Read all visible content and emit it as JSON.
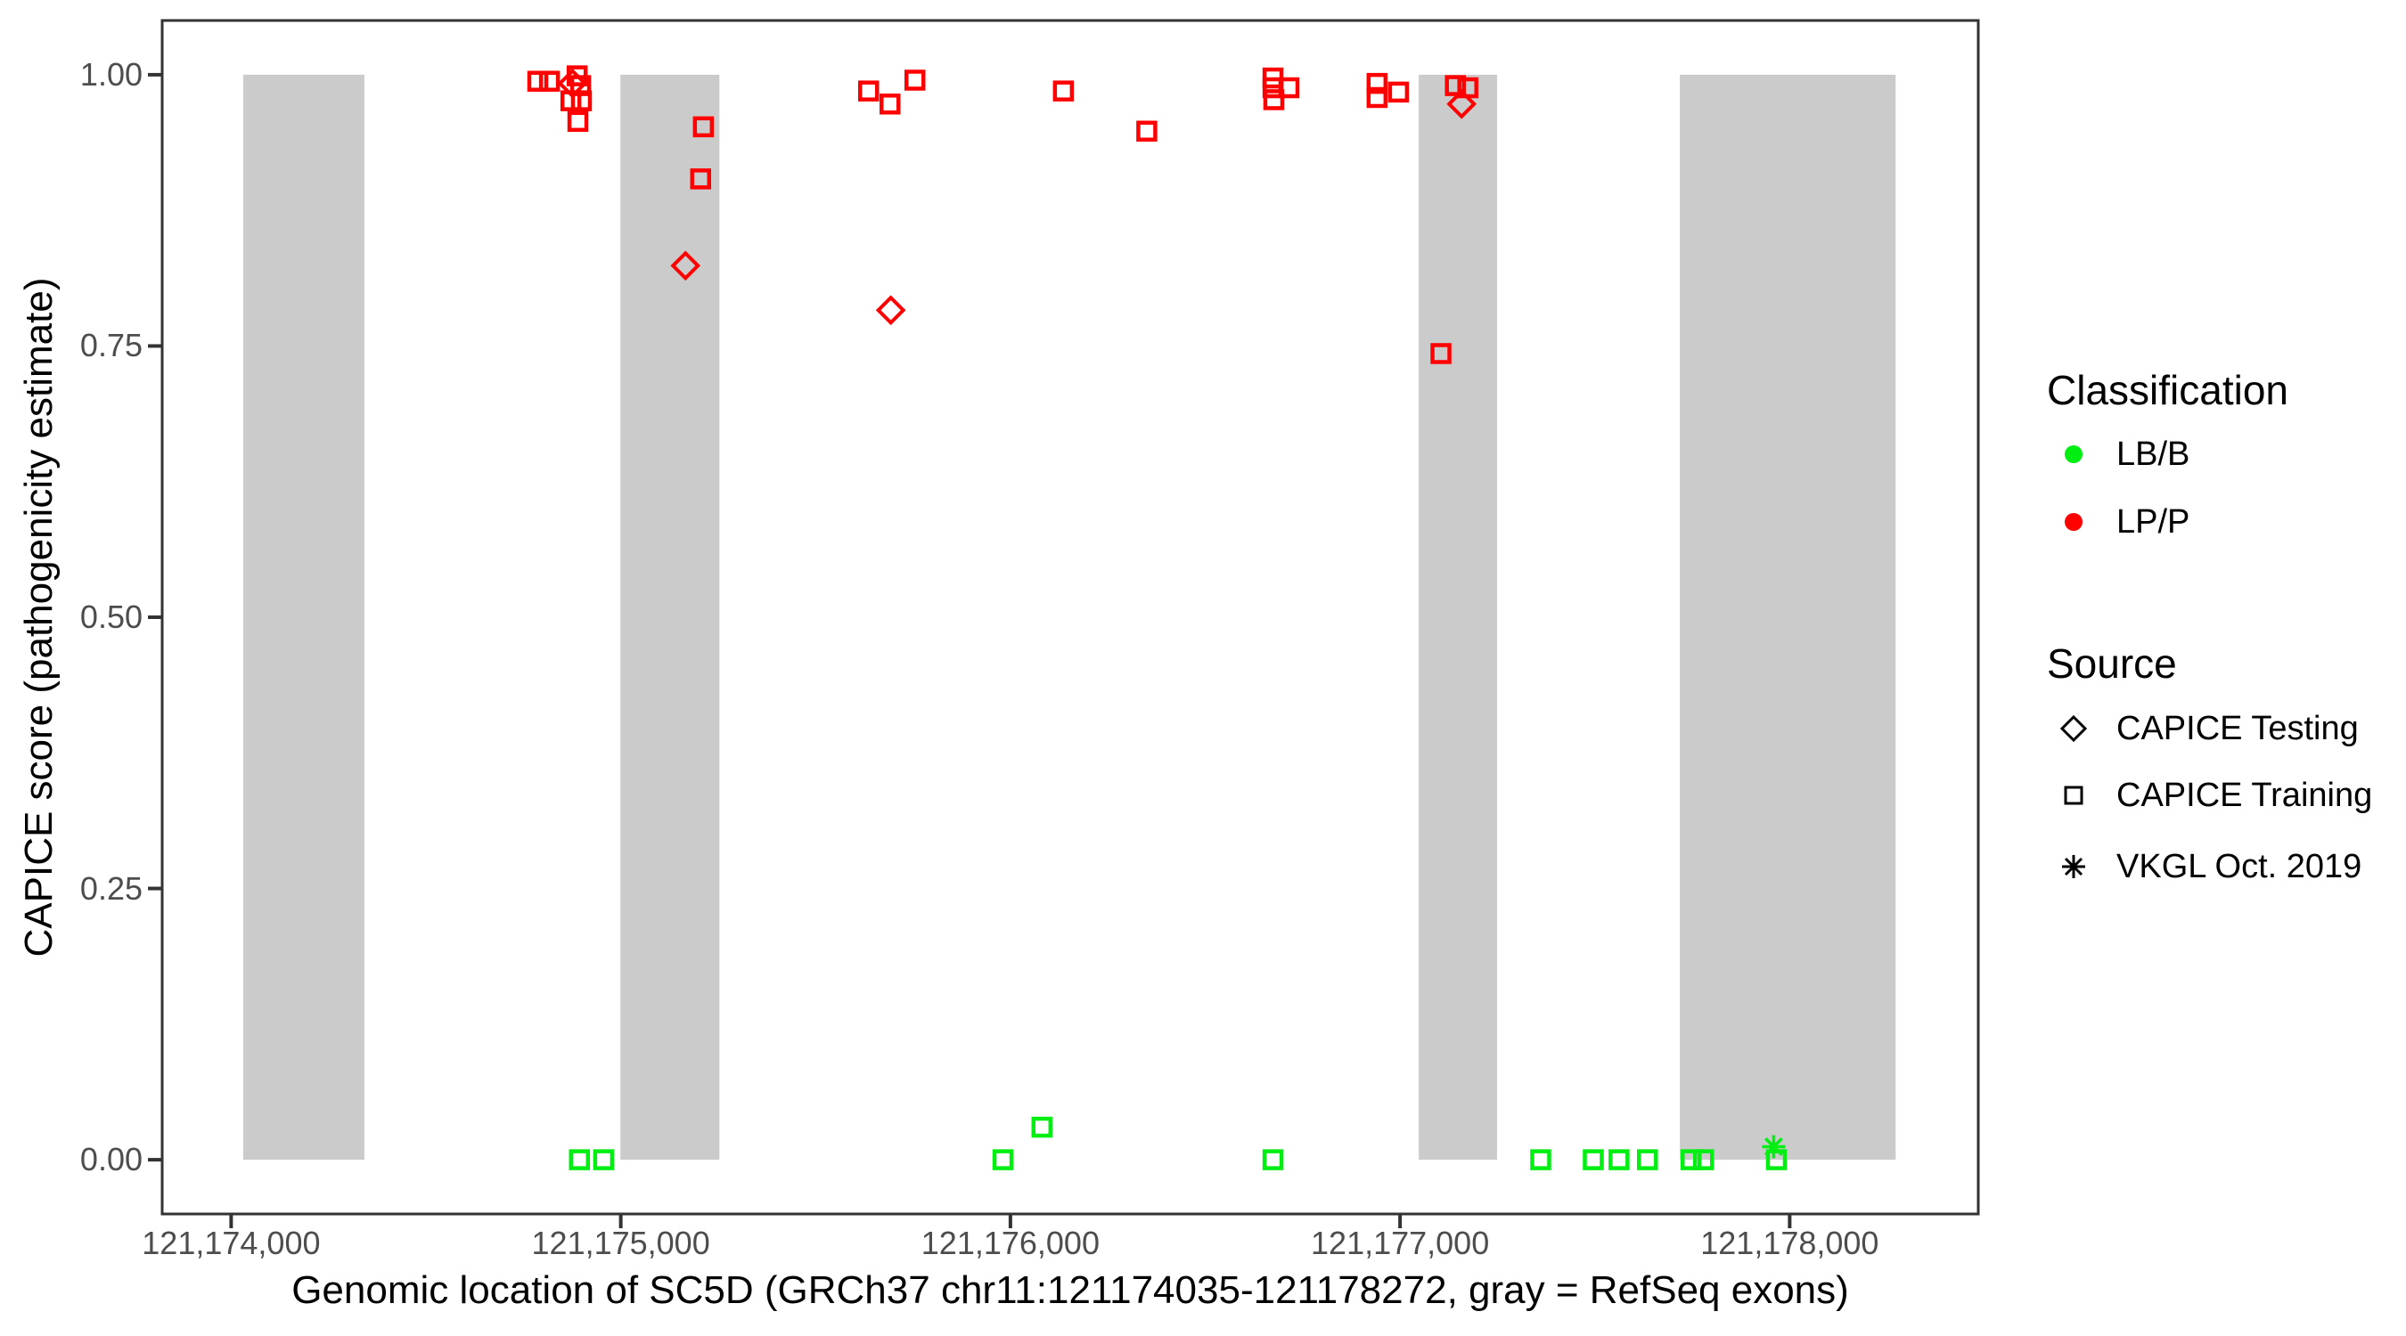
{
  "figure": {
    "kind": "scatter plot of variant pathogenicity scores across a gene"
  },
  "legend": {
    "classification": {
      "title": "Classification",
      "items": [
        {
          "label": "LB/B",
          "color": "#00EE11"
        },
        {
          "label": "LP/P",
          "color": "#FF0000"
        }
      ]
    },
    "source": {
      "title": "Source",
      "items": [
        {
          "label": "CAPICE Testing",
          "shape": "diamond"
        },
        {
          "label": "CAPICE Training",
          "shape": "square"
        },
        {
          "label": "VKGL Oct. 2019",
          "shape": "asterisk"
        }
      ]
    }
  },
  "chart_data": {
    "type": "scatter",
    "title": "",
    "xlabel": "Genomic location of SC5D (GRCh37 chr11:121174035-121178272, gray = RefSeq exons)",
    "ylabel": "CAPICE score (pathogenicity estimate)",
    "xlim": [
      121173823,
      121178484
    ],
    "ylim": [
      -0.05,
      1.05
    ],
    "grid": false,
    "legend_position": "right",
    "x_ticks": [
      {
        "value": 121174000,
        "label": "121,174,000"
      },
      {
        "value": 121175000,
        "label": "121,175,000"
      },
      {
        "value": 121176000,
        "label": "121,176,000"
      },
      {
        "value": 121177000,
        "label": "121,177,000"
      },
      {
        "value": 121178000,
        "label": "121,178,000"
      }
    ],
    "y_ticks": [
      {
        "value": 0.0,
        "label": "0.00"
      },
      {
        "value": 0.25,
        "label": "0.25"
      },
      {
        "value": 0.5,
        "label": "0.50"
      },
      {
        "value": 0.75,
        "label": "0.75"
      },
      {
        "value": 1.0,
        "label": "1.00"
      }
    ],
    "exons": [
      [
        121174031,
        121174342
      ],
      [
        121174999,
        121175253
      ],
      [
        121177048,
        121177249
      ],
      [
        121177718,
        121178272
      ]
    ],
    "colors": {
      "LB/B": "#00EE11",
      "LP/P": "#FF0000",
      "exon": "#CBCBCB",
      "axis": "#333333",
      "tick_text": "#4d4d4d"
    },
    "series": [
      {
        "name": "LP/P - CAPICE Training",
        "classification": "LP/P",
        "source": "CAPICE Training",
        "shape": "square",
        "color": "#FF0000",
        "points": [
          [
            121174787,
            0.994
          ],
          [
            121174817,
            0.994
          ],
          [
            121174888,
            0.999
          ],
          [
            121174897,
            0.99
          ],
          [
            121174872,
            0.976
          ],
          [
            121174899,
            0.976
          ],
          [
            121174890,
            0.957
          ],
          [
            121175212,
            0.952
          ],
          [
            121175205,
            0.904
          ],
          [
            121175636,
            0.985
          ],
          [
            121175691,
            0.973
          ],
          [
            121175755,
            0.995
          ],
          [
            121176136,
            0.985
          ],
          [
            121176350,
            0.948
          ],
          [
            121176674,
            0.997
          ],
          [
            121176674,
            0.988
          ],
          [
            121176676,
            0.977
          ],
          [
            121176715,
            0.988
          ],
          [
            121176941,
            0.992
          ],
          [
            121176941,
            0.979
          ],
          [
            121176996,
            0.984
          ],
          [
            121177142,
            0.99
          ],
          [
            121177174,
            0.988
          ],
          [
            121177105,
            0.743
          ]
        ]
      },
      {
        "name": "LP/P - CAPICE Testing",
        "classification": "LP/P",
        "source": "CAPICE Testing",
        "shape": "diamond",
        "color": "#FF0000",
        "points": [
          [
            121174876,
            0.992
          ],
          [
            121175166,
            0.824
          ],
          [
            121175693,
            0.783
          ],
          [
            121177158,
            0.973
          ]
        ]
      },
      {
        "name": "LB/B - CAPICE Training",
        "classification": "LB/B",
        "source": "CAPICE Training",
        "shape": "square",
        "color": "#00EE11",
        "points": [
          [
            121174894,
            0.0
          ],
          [
            121174956,
            0.0
          ],
          [
            121175981,
            0.0
          ],
          [
            121176081,
            0.03
          ],
          [
            121176674,
            0.0
          ],
          [
            121177361,
            0.0
          ],
          [
            121177496,
            0.0
          ],
          [
            121177562,
            0.0
          ],
          [
            121177635,
            0.0
          ],
          [
            121177747,
            0.0
          ],
          [
            121177779,
            0.0
          ],
          [
            121177966,
            0.0
          ]
        ]
      },
      {
        "name": "LB/B - VKGL Oct. 2019",
        "classification": "LB/B",
        "source": "VKGL Oct. 2019",
        "shape": "asterisk",
        "color": "#00EE11",
        "points": [
          [
            121177959,
            0.012
          ]
        ]
      }
    ]
  }
}
